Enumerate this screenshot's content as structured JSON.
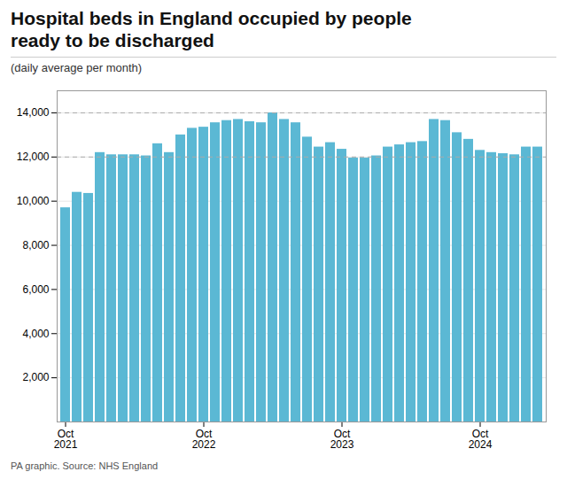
{
  "chart_data": {
    "type": "bar",
    "title": "Hospital beds in England occupied by people\nready to be discharged",
    "subtitle": "(daily average per month)",
    "source": "PA graphic. Source: NHS England",
    "categories": [
      "Oct\n2021",
      null,
      null,
      null,
      null,
      null,
      null,
      null,
      null,
      null,
      null,
      null,
      "Oct\n2022",
      null,
      null,
      null,
      null,
      null,
      null,
      null,
      null,
      null,
      null,
      null,
      "Oct\n2023",
      null,
      null,
      null,
      null,
      null,
      null,
      null,
      null,
      null,
      null,
      null,
      "Oct\n2024",
      null,
      null,
      null,
      null,
      null
    ],
    "values": [
      9700,
      10400,
      10350,
      12200,
      12100,
      12100,
      12100,
      12050,
      12600,
      12200,
      13000,
      13300,
      13350,
      13550,
      13650,
      13700,
      13600,
      13550,
      14000,
      13700,
      13550,
      12900,
      12450,
      12650,
      12350,
      11950,
      11950,
      12050,
      12450,
      12550,
      12650,
      12700,
      13700,
      13650,
      13100,
      12800,
      12300,
      12200,
      12150,
      12100,
      12450,
      12450
    ],
    "color": "#5BB8D4",
    "ylim": [
      0,
      15000
    ],
    "yticks": [
      {
        "value": 2000,
        "label": "2,000"
      },
      {
        "value": 4000,
        "label": "4,000"
      },
      {
        "value": 6000,
        "label": "6,000"
      },
      {
        "value": 8000,
        "label": "8,000"
      },
      {
        "value": 10000,
        "label": "10,000"
      },
      {
        "value": 12000,
        "label": "12,000"
      },
      {
        "value": 14000,
        "label": "14,000"
      }
    ],
    "grid": true,
    "reference_lines": [
      12000,
      14000
    ]
  }
}
